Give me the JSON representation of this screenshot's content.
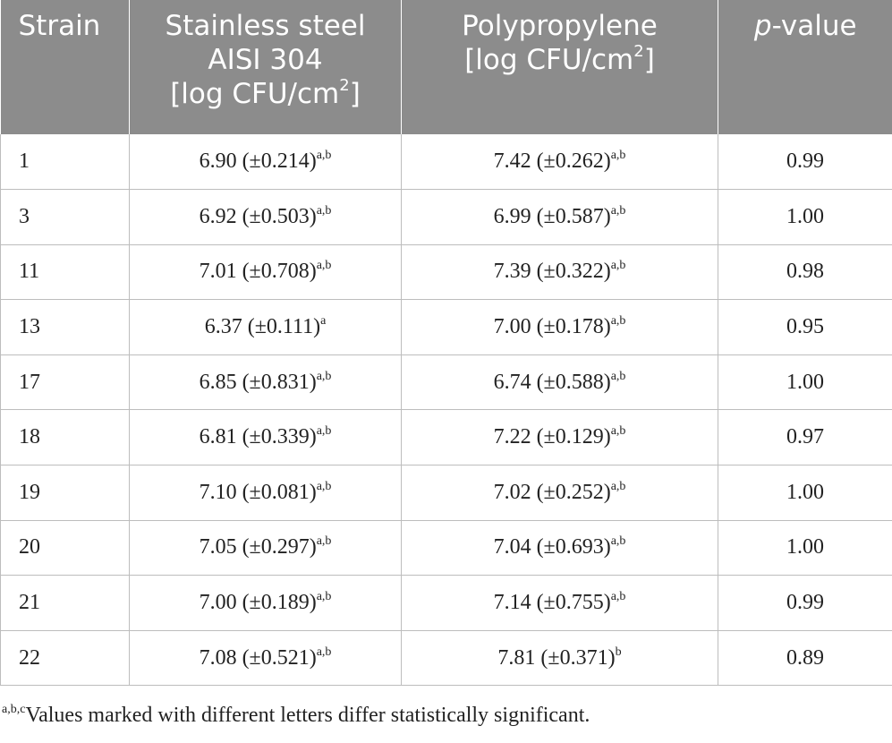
{
  "header": {
    "strain": "Strain",
    "steel_line1": "Stainless steel",
    "steel_line2": "AISI 304",
    "unit_prefix": "[log CFU/cm",
    "unit_exp": "2",
    "unit_suffix": "]",
    "pp_line1": "Polypropylene",
    "p_italic": "p",
    "p_rest": "-value"
  },
  "rows": [
    {
      "strain": "1",
      "steel": "6.90 (±0.214)",
      "steel_sup": "a,b",
      "pp": "7.42 (±0.262)",
      "pp_sup": "a,b",
      "p": "0.99"
    },
    {
      "strain": "3",
      "steel": "6.92 (±0.503)",
      "steel_sup": "a,b",
      "pp": "6.99 (±0.587)",
      "pp_sup": "a,b",
      "p": "1.00"
    },
    {
      "strain": "11",
      "steel": "7.01 (±0.708)",
      "steel_sup": "a,b",
      "pp": "7.39 (±0.322)",
      "pp_sup": "a,b",
      "p": "0.98"
    },
    {
      "strain": "13",
      "steel": "6.37 (±0.111)",
      "steel_sup": "a",
      "pp": "7.00 (±0.178)",
      "pp_sup": "a,b",
      "p": "0.95"
    },
    {
      "strain": "17",
      "steel": "6.85 (±0.831)",
      "steel_sup": "a,b",
      "pp": "6.74 (±0.588)",
      "pp_sup": "a,b",
      "p": "1.00"
    },
    {
      "strain": "18",
      "steel": "6.81 (±0.339)",
      "steel_sup": "a,b",
      "pp": "7.22 (±0.129)",
      "pp_sup": "a,b",
      "p": "0.97"
    },
    {
      "strain": "19",
      "steel": "7.10 (±0.081)",
      "steel_sup": "a,b",
      "pp": "7.02 (±0.252)",
      "pp_sup": "a,b",
      "p": "1.00"
    },
    {
      "strain": "20",
      "steel": "7.05 (±0.297)",
      "steel_sup": "a,b",
      "pp": "7.04 (±0.693)",
      "pp_sup": "a,b",
      "p": "1.00"
    },
    {
      "strain": "21",
      "steel": "7.00 (±0.189)",
      "steel_sup": "a,b",
      "pp": "7.14 (±0.755)",
      "pp_sup": "a,b",
      "p": "0.99"
    },
    {
      "strain": "22",
      "steel": "7.08 (±0.521)",
      "steel_sup": "a,b",
      "pp": "7.81 (±0.371)",
      "pp_sup": "b",
      "p": "0.89"
    }
  ],
  "footnote": {
    "sup": "a,b,c",
    "text": "Values marked with different letters differ statistically significant."
  },
  "colors": {
    "header_bg": "#8c8c8c",
    "header_text": "#ffffff",
    "grid": "#bdbdbd"
  }
}
